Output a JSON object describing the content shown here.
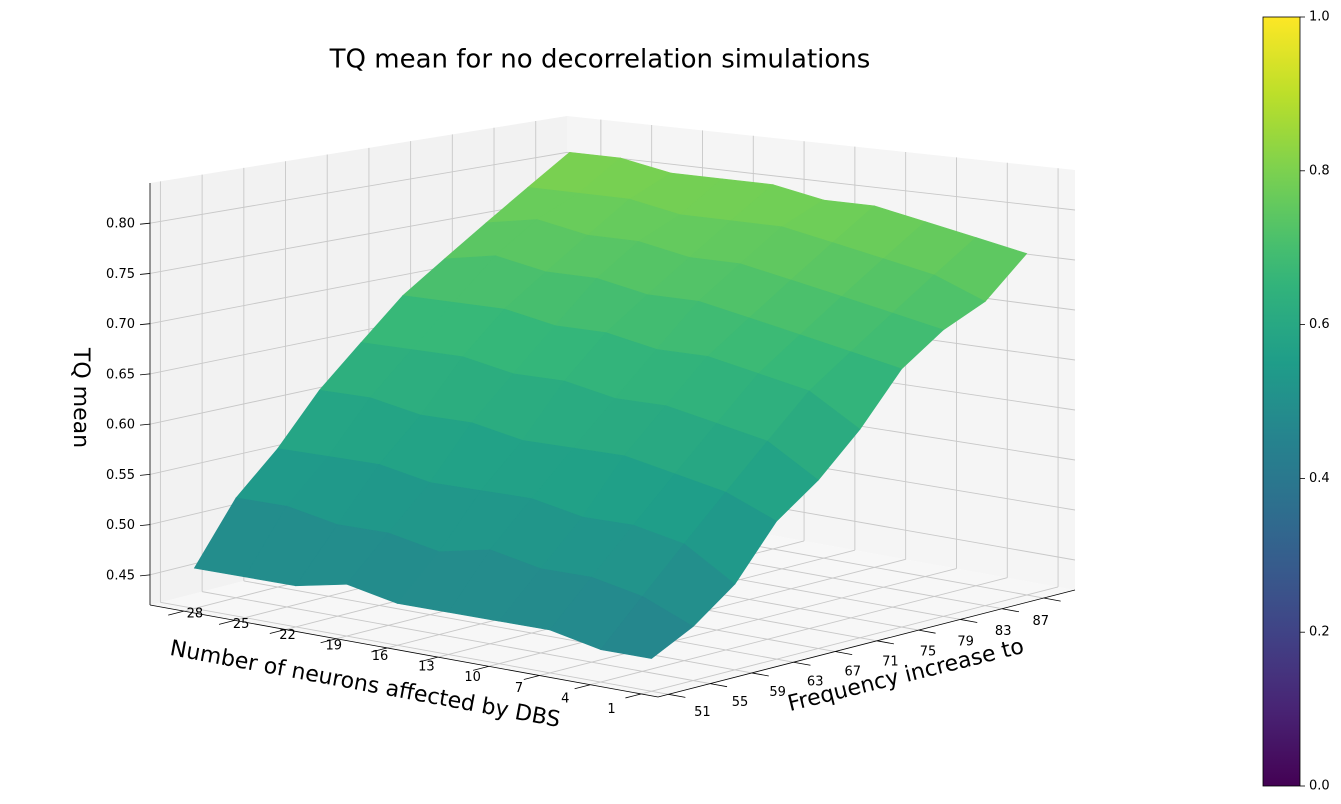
{
  "chart_data": {
    "type": "surface",
    "title": "TQ mean for no decorrelation simulations",
    "xlabel": "Number of neurons affected by DBS",
    "ylabel": "Frequency increase to",
    "zlabel": "TQ mean",
    "x": [
      1,
      4,
      7,
      10,
      13,
      16,
      19,
      22,
      25,
      28
    ],
    "y": [
      51,
      55,
      59,
      63,
      67,
      71,
      75,
      79,
      83,
      87
    ],
    "z": [
      [
        0.45,
        0.45,
        0.46,
        0.46,
        0.46,
        0.46,
        0.47,
        0.46,
        0.46,
        0.46
      ],
      [
        0.47,
        0.49,
        0.5,
        0.5,
        0.51,
        0.5,
        0.51,
        0.51,
        0.52,
        0.52
      ],
      [
        0.5,
        0.53,
        0.54,
        0.54,
        0.55,
        0.55,
        0.55,
        0.56,
        0.56,
        0.56
      ],
      [
        0.55,
        0.57,
        0.58,
        0.59,
        0.59,
        0.59,
        0.6,
        0.6,
        0.61,
        0.61
      ],
      [
        0.58,
        0.61,
        0.62,
        0.63,
        0.63,
        0.64,
        0.64,
        0.65,
        0.65,
        0.65
      ],
      [
        0.62,
        0.65,
        0.66,
        0.67,
        0.67,
        0.68,
        0.68,
        0.69,
        0.69,
        0.69
      ],
      [
        0.67,
        0.68,
        0.69,
        0.7,
        0.71,
        0.71,
        0.72,
        0.72,
        0.73,
        0.72
      ],
      [
        0.7,
        0.71,
        0.72,
        0.73,
        0.74,
        0.74,
        0.75,
        0.75,
        0.76,
        0.75
      ],
      [
        0.72,
        0.74,
        0.75,
        0.76,
        0.77,
        0.77,
        0.77,
        0.78,
        0.78,
        0.78
      ],
      [
        0.76,
        0.77,
        0.78,
        0.79,
        0.79,
        0.8,
        0.8,
        0.8,
        0.81,
        0.81
      ]
    ],
    "xlim": [
      0,
      30
    ],
    "ylim": [
      50,
      90
    ],
    "zlim": [
      0.42,
      0.84
    ],
    "xticks": [
      1,
      4,
      7,
      10,
      13,
      16,
      19,
      22,
      25,
      28
    ],
    "yticks": [
      51,
      55,
      59,
      63,
      67,
      71,
      75,
      79,
      83,
      87
    ],
    "zticks": [
      0.45,
      {
        "value": 0.5,
        "label": "0.50"
      },
      0.55,
      {
        "value": 0.6,
        "label": "0.60"
      },
      0.65,
      {
        "value": 0.7,
        "label": "0.70"
      },
      0.75,
      {
        "value": 0.8,
        "label": "0.80"
      }
    ],
    "colormap": "viridis",
    "clim": [
      0,
      1
    ],
    "colorbar_ticks": [
      {
        "value": 0,
        "label": "0.0"
      },
      {
        "value": 0.2,
        "label": "0.2"
      },
      {
        "value": 0.4,
        "label": "0.4"
      },
      {
        "value": 0.6,
        "label": "0.6"
      },
      {
        "value": 0.8,
        "label": "0.8"
      },
      {
        "value": 1,
        "label": "1.0"
      }
    ],
    "grid": true
  }
}
